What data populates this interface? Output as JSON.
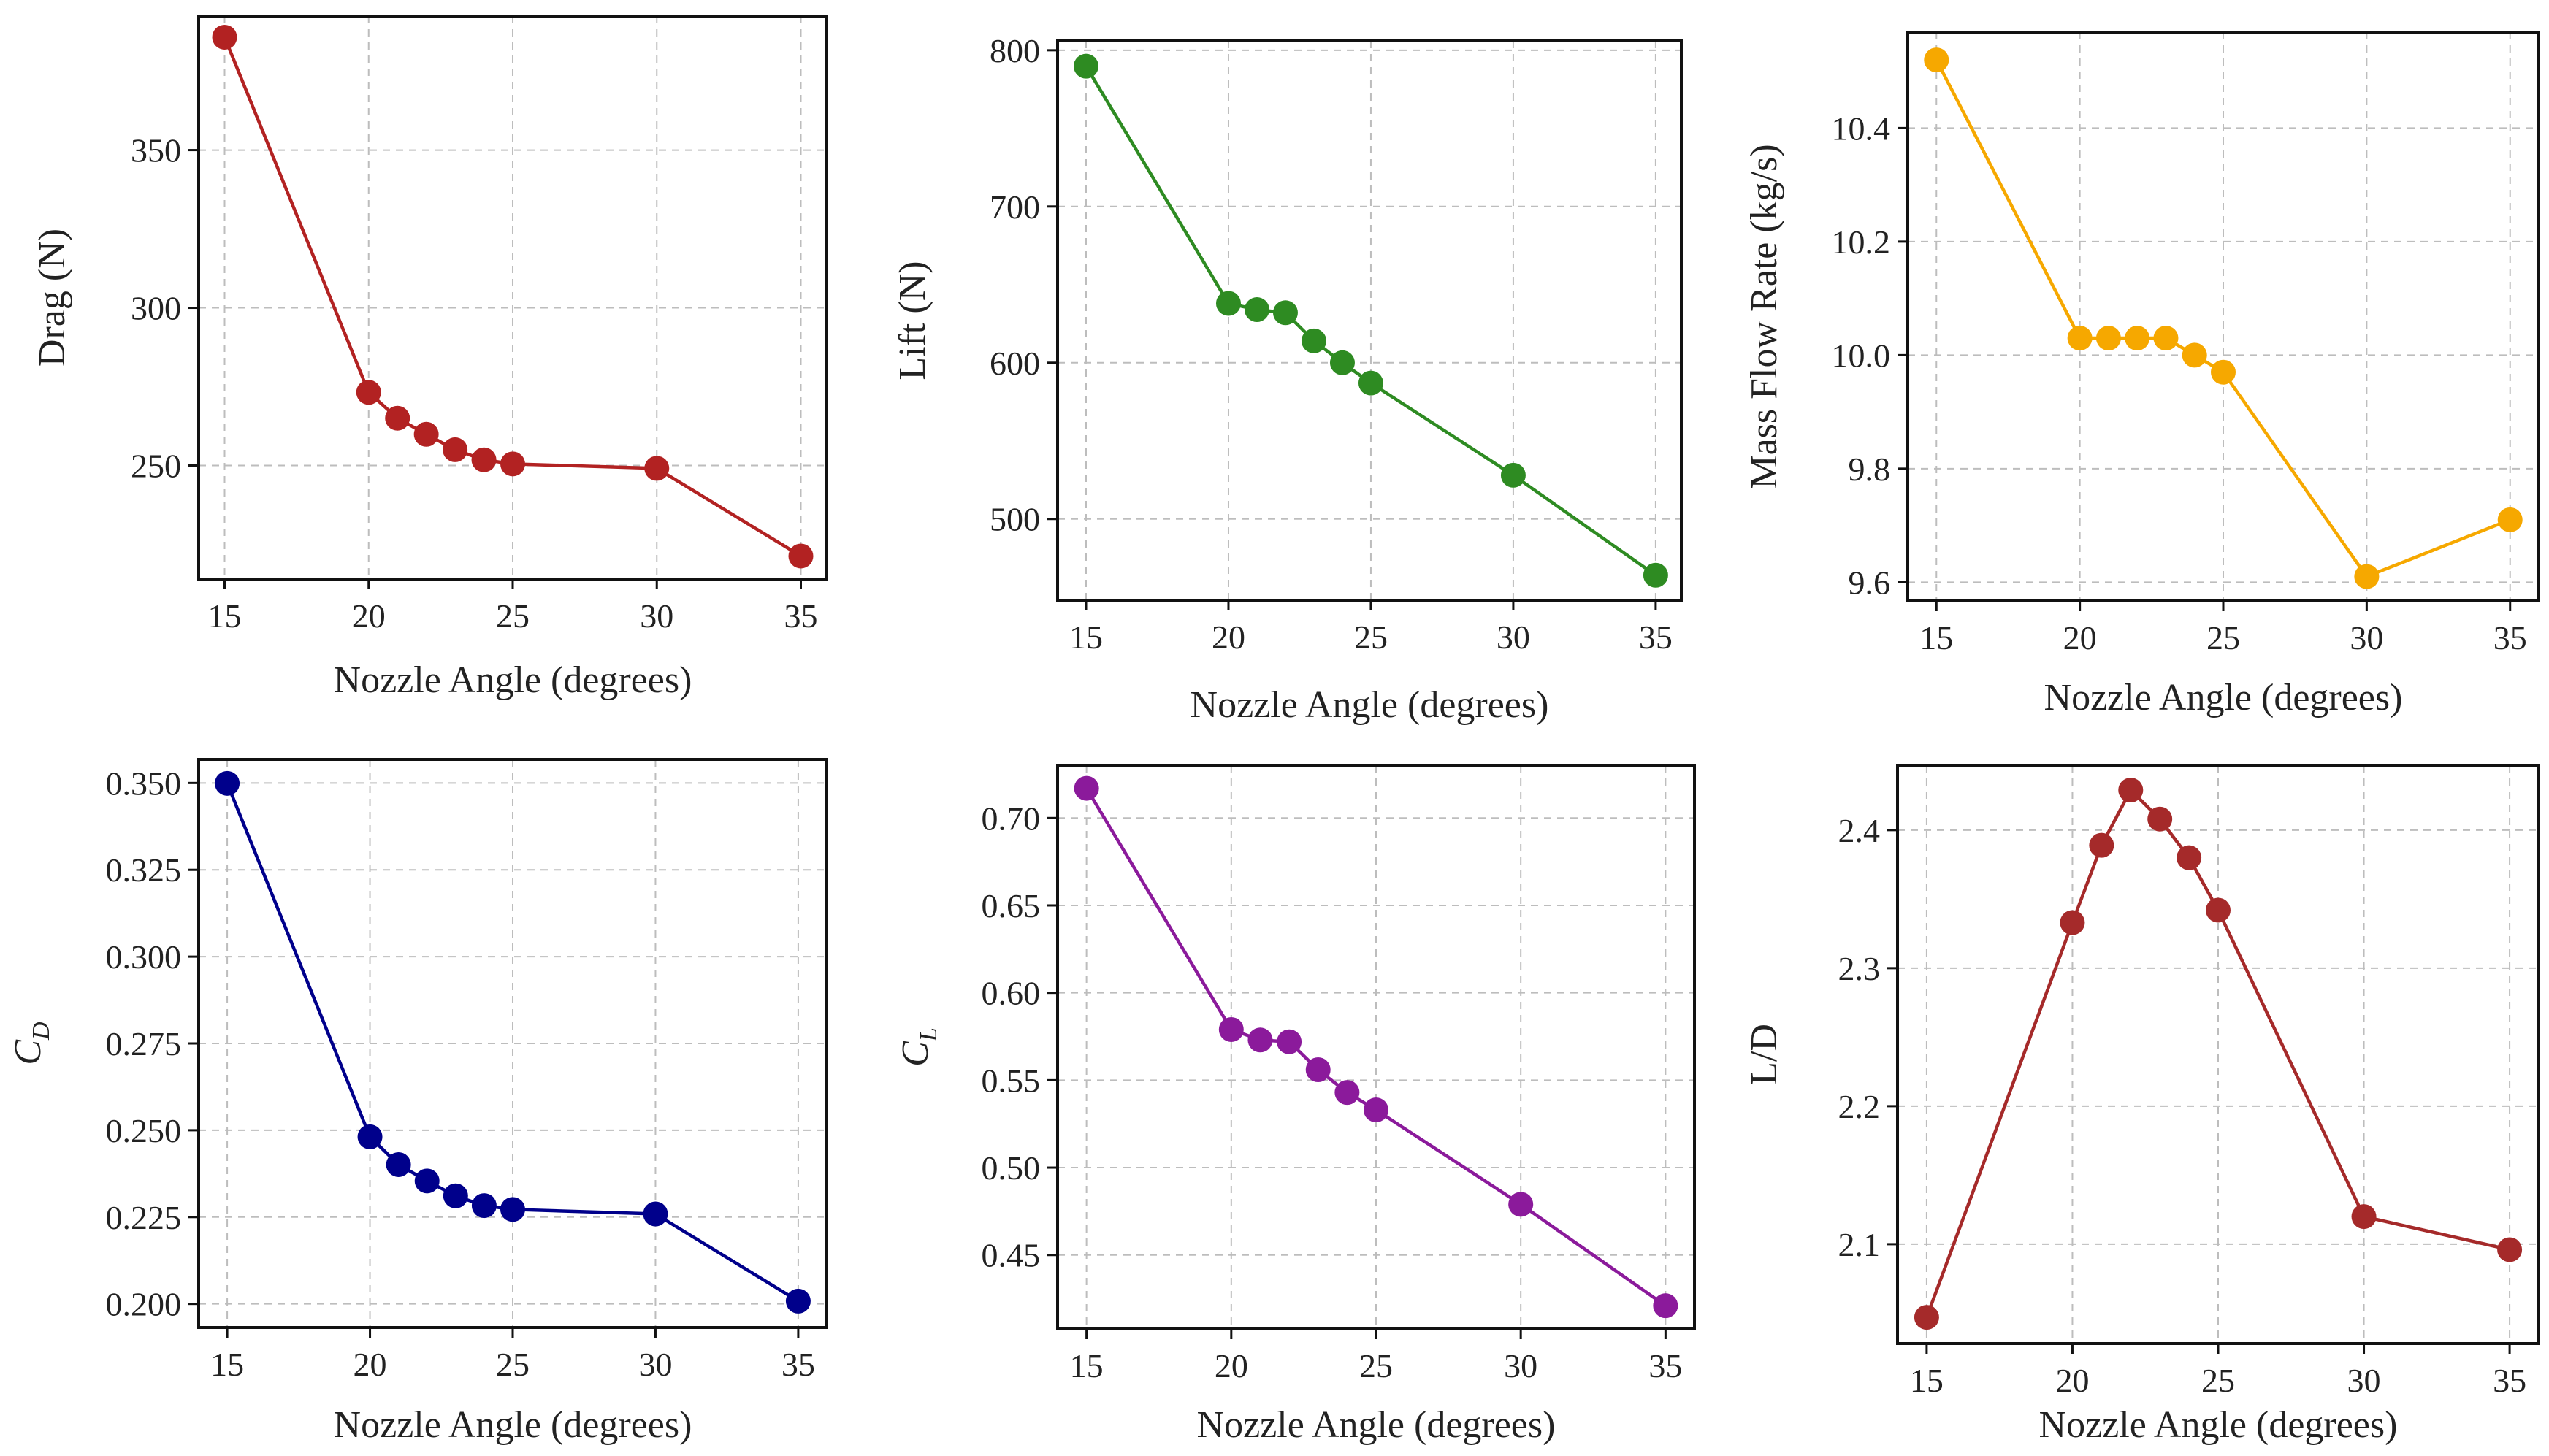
{
  "chart_data": [
    {
      "type": "line",
      "xlabel": "Nozzle Angle (degrees)",
      "ylabel": "Drag (N)",
      "x": [
        15,
        20,
        21,
        22,
        23,
        24,
        25,
        30,
        35
      ],
      "series": [
        {
          "values": [
            385.8,
            273.2,
            265.0,
            259.9,
            255.0,
            251.8,
            250.5,
            249.1,
            221.3
          ]
        }
      ],
      "color": "#b22222",
      "xticks": [
        15,
        20,
        25,
        30,
        35
      ],
      "yticks": [
        250,
        300,
        350
      ],
      "xlim": [
        14.1,
        35.9
      ],
      "ylim": [
        214.0,
        392.5
      ],
      "grid": true
    },
    {
      "type": "line",
      "xlabel": "Nozzle Angle (degrees)",
      "ylabel": "Lift (N)",
      "x": [
        15,
        20,
        21,
        22,
        23,
        24,
        25,
        30,
        35
      ],
      "series": [
        {
          "values": [
            789.8,
            638.0,
            634.0,
            632.0,
            614.0,
            600.0,
            587.0,
            528.0,
            464.0
          ]
        }
      ],
      "color": "#2e8b22",
      "xticks": [
        15,
        20,
        25,
        30,
        35
      ],
      "yticks": [
        500,
        600,
        700,
        800
      ],
      "xlim": [
        14.0,
        35.9
      ],
      "ylim": [
        448.0,
        806.0
      ],
      "grid": true
    },
    {
      "type": "line",
      "xlabel": "Nozzle Angle (degrees)",
      "ylabel": "Mass Flow Rate (kg/s)",
      "x": [
        15,
        20,
        21,
        22,
        23,
        24,
        25,
        30,
        35
      ],
      "series": [
        {
          "values": [
            10.52,
            10.03,
            10.03,
            10.03,
            10.03,
            10.0,
            9.97,
            9.61,
            9.71
          ]
        }
      ],
      "color": "#f6a800",
      "xticks": [
        15,
        20,
        25,
        30,
        35
      ],
      "yticks": [
        "9.6",
        "9.8",
        "10.0",
        "10.2",
        "10.4"
      ],
      "xlim": [
        14.0,
        36.0
      ],
      "ylim": [
        9.567,
        10.569
      ],
      "grid": true
    },
    {
      "type": "line",
      "xlabel": "Nozzle Angle (degrees)",
      "ylabel": "C",
      "ylabel_subscript": "D",
      "x": [
        15,
        20,
        21,
        22,
        23,
        24,
        25,
        30,
        35
      ],
      "series": [
        {
          "values": [
            0.3499,
            0.2481,
            0.2401,
            0.2354,
            0.2311,
            0.2283,
            0.2272,
            0.2259,
            0.2008
          ]
        }
      ],
      "color": "#00008b",
      "xticks": [
        15,
        20,
        25,
        30,
        35
      ],
      "yticks": [
        "0.200",
        "0.225",
        "0.250",
        "0.275",
        "0.300",
        "0.325",
        "0.350"
      ],
      "xlim": [
        14.0,
        36.0
      ],
      "ylim": [
        0.1932,
        0.3568
      ],
      "grid": true
    },
    {
      "type": "line",
      "xlabel": "Nozzle Angle (degrees)",
      "ylabel": "C",
      "ylabel_subscript": "L",
      "x": [
        15,
        20,
        21,
        22,
        23,
        24,
        25,
        30,
        35
      ],
      "series": [
        {
          "values": [
            0.717,
            0.579,
            0.573,
            0.572,
            0.556,
            0.543,
            0.533,
            0.479,
            0.421
          ]
        }
      ],
      "color": "#8b1a9b",
      "xticks": [
        15,
        20,
        25,
        30,
        35
      ],
      "yticks": [
        "0.45",
        "0.50",
        "0.55",
        "0.60",
        "0.65",
        "0.70"
      ],
      "xlim": [
        14.0,
        36.0
      ],
      "ylim": [
        0.4077,
        0.7302
      ],
      "grid": true
    },
    {
      "type": "line",
      "xlabel": "Nozzle Angle (degrees)",
      "ylabel": "L/D",
      "x": [
        15,
        20,
        21,
        22,
        23,
        24,
        25,
        30,
        35
      ],
      "series": [
        {
          "values": [
            2.047,
            2.333,
            2.389,
            2.429,
            2.408,
            2.38,
            2.342,
            2.12,
            2.096
          ]
        }
      ],
      "color": "#a52a2a",
      "xticks": [
        15,
        20,
        25,
        30,
        35
      ],
      "yticks": [
        "2.1",
        "2.2",
        "2.3",
        "2.4"
      ],
      "xlim": [
        14.0,
        36.0
      ],
      "ylim": [
        2.028,
        2.447
      ],
      "grid": true
    }
  ]
}
